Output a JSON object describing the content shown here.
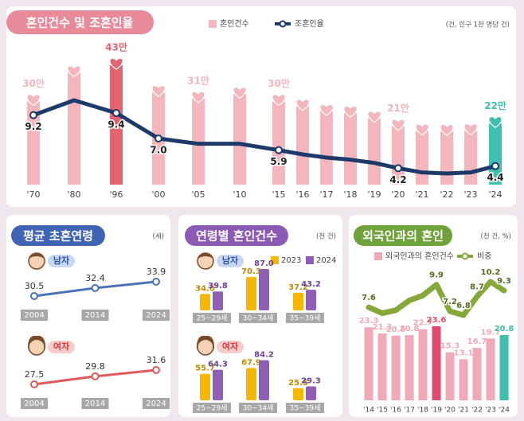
{
  "chart_data": [
    {
      "type": "bar",
      "title": "혼인건수 및 조혼인율",
      "note": "(건, 인구 1천 명당 건)",
      "categories": [
        "'70",
        "'80",
        "'96",
        "'00",
        "'05",
        "'10",
        "'15",
        "'16",
        "'17",
        "'18",
        "'19",
        "'20",
        "'21",
        "'22",
        "'23",
        "'24"
      ],
      "series": [
        {
          "name": "혼인건수",
          "color": "#f2b6bc",
          "colors": [
            "#f2b6bc",
            "#f2b6bc",
            "#e06570",
            "#f2b6bc",
            "#f2b6bc",
            "#f2b6bc",
            "#f2b6bc",
            "#f2b6bc",
            "#f2b6bc",
            "#f2b6bc",
            "#f2b6bc",
            "#f2b6bc",
            "#f2b6bc",
            "#f2b6bc",
            "#f2b6bc",
            "#3fbfae"
          ],
          "values": [
            30,
            40.3,
            43,
            33.2,
            31,
            32.6,
            30,
            28.2,
            26.4,
            25.8,
            23.9,
            21,
            19.3,
            19.2,
            19.4,
            22
          ],
          "value_labels": [
            "30만",
            null,
            "43만",
            null,
            "31만",
            null,
            "30만",
            null,
            null,
            null,
            null,
            "21만",
            null,
            null,
            null,
            "22만"
          ]
        },
        {
          "name": "조혼인율",
          "type": "line",
          "axis": "y2",
          "color": "#1d3a6b",
          "values": [
            9.2,
            10.6,
            9.4,
            7.0,
            6.5,
            6.5,
            5.9,
            5.5,
            5.2,
            5.0,
            4.7,
            4.2,
            3.8,
            3.7,
            3.8,
            4.4
          ],
          "value_labels": [
            "9.2",
            null,
            "9.4",
            "7.0",
            null,
            null,
            "5.9",
            null,
            null,
            null,
            null,
            "4.2",
            null,
            null,
            null,
            "4.4"
          ]
        }
      ]
    },
    {
      "type": "line",
      "title": "평균 초혼연령",
      "note": "(세)",
      "x": [
        2004,
        2014,
        2024
      ],
      "series": [
        {
          "name": "남자",
          "color": "#4a72b8",
          "values": [
            30.5,
            32.4,
            33.9
          ]
        },
        {
          "name": "여자",
          "color": "#e0585a",
          "values": [
            27.5,
            29.8,
            31.6
          ]
        }
      ]
    },
    {
      "type": "grouped_bar",
      "title": "연령별 혼인건수",
      "note": "(천 건)",
      "series": [
        {
          "name": "2023",
          "color": "#f5b800"
        },
        {
          "name": "2024",
          "color": "#8f5fb8"
        }
      ],
      "groups": [
        {
          "name": "남자",
          "categories": [
            "25~29세",
            "30~34세",
            "35~39세"
          ],
          "values": [
            [
              34.6,
              39.8
            ],
            [
              70.3,
              87.0
            ],
            [
              37.2,
              43.2
            ]
          ],
          "value_labels": [
            [
              null,
              null
            ],
            [
              null,
              "87.0"
            ],
            [
              null,
              null
            ]
          ]
        },
        {
          "name": "여자",
          "categories": [
            "25~29세",
            "30~34세",
            "35~39세"
          ],
          "values": [
            [
              55.7,
              64.3
            ],
            [
              67.9,
              84.2
            ],
            [
              25.5,
              29.3
            ]
          ]
        }
      ]
    },
    {
      "type": "bar",
      "title": "외국인과의 혼인",
      "note": "(천 건, %)",
      "categories": [
        "'14",
        "'15",
        "'16",
        "'17",
        "'18",
        "'19",
        "'20",
        "'21",
        "'22",
        "'23",
        "'24"
      ],
      "series": [
        {
          "name": "외국인과의 혼인건수",
          "color": "#f0a9b6",
          "colors": [
            "#f0a9b6",
            "#f0a9b6",
            "#f0a9b6",
            "#f0a9b6",
            "#f0a9b6",
            "#e04a6c",
            "#f0a9b6",
            "#f0a9b6",
            "#f0a9b6",
            "#f0a9b6",
            "#3fbfae"
          ],
          "values": [
            23.3,
            21.3,
            20.6,
            20.8,
            22.7,
            23.6,
            15.3,
            13.1,
            16.7,
            19.7,
            20.8
          ]
        },
        {
          "name": "비중",
          "type": "line",
          "axis": "y2",
          "color": "#86a83a",
          "values": [
            7.6,
            7.0,
            7.3,
            8.3,
            8.8,
            9.9,
            7.2,
            6.8,
            8.7,
            10.2,
            9.3
          ],
          "value_labels": [
            "7.6",
            null,
            null,
            null,
            null,
            "9.9",
            "7.2",
            "6.8",
            "8.7",
            "10.2",
            "9.3"
          ]
        }
      ]
    }
  ]
}
